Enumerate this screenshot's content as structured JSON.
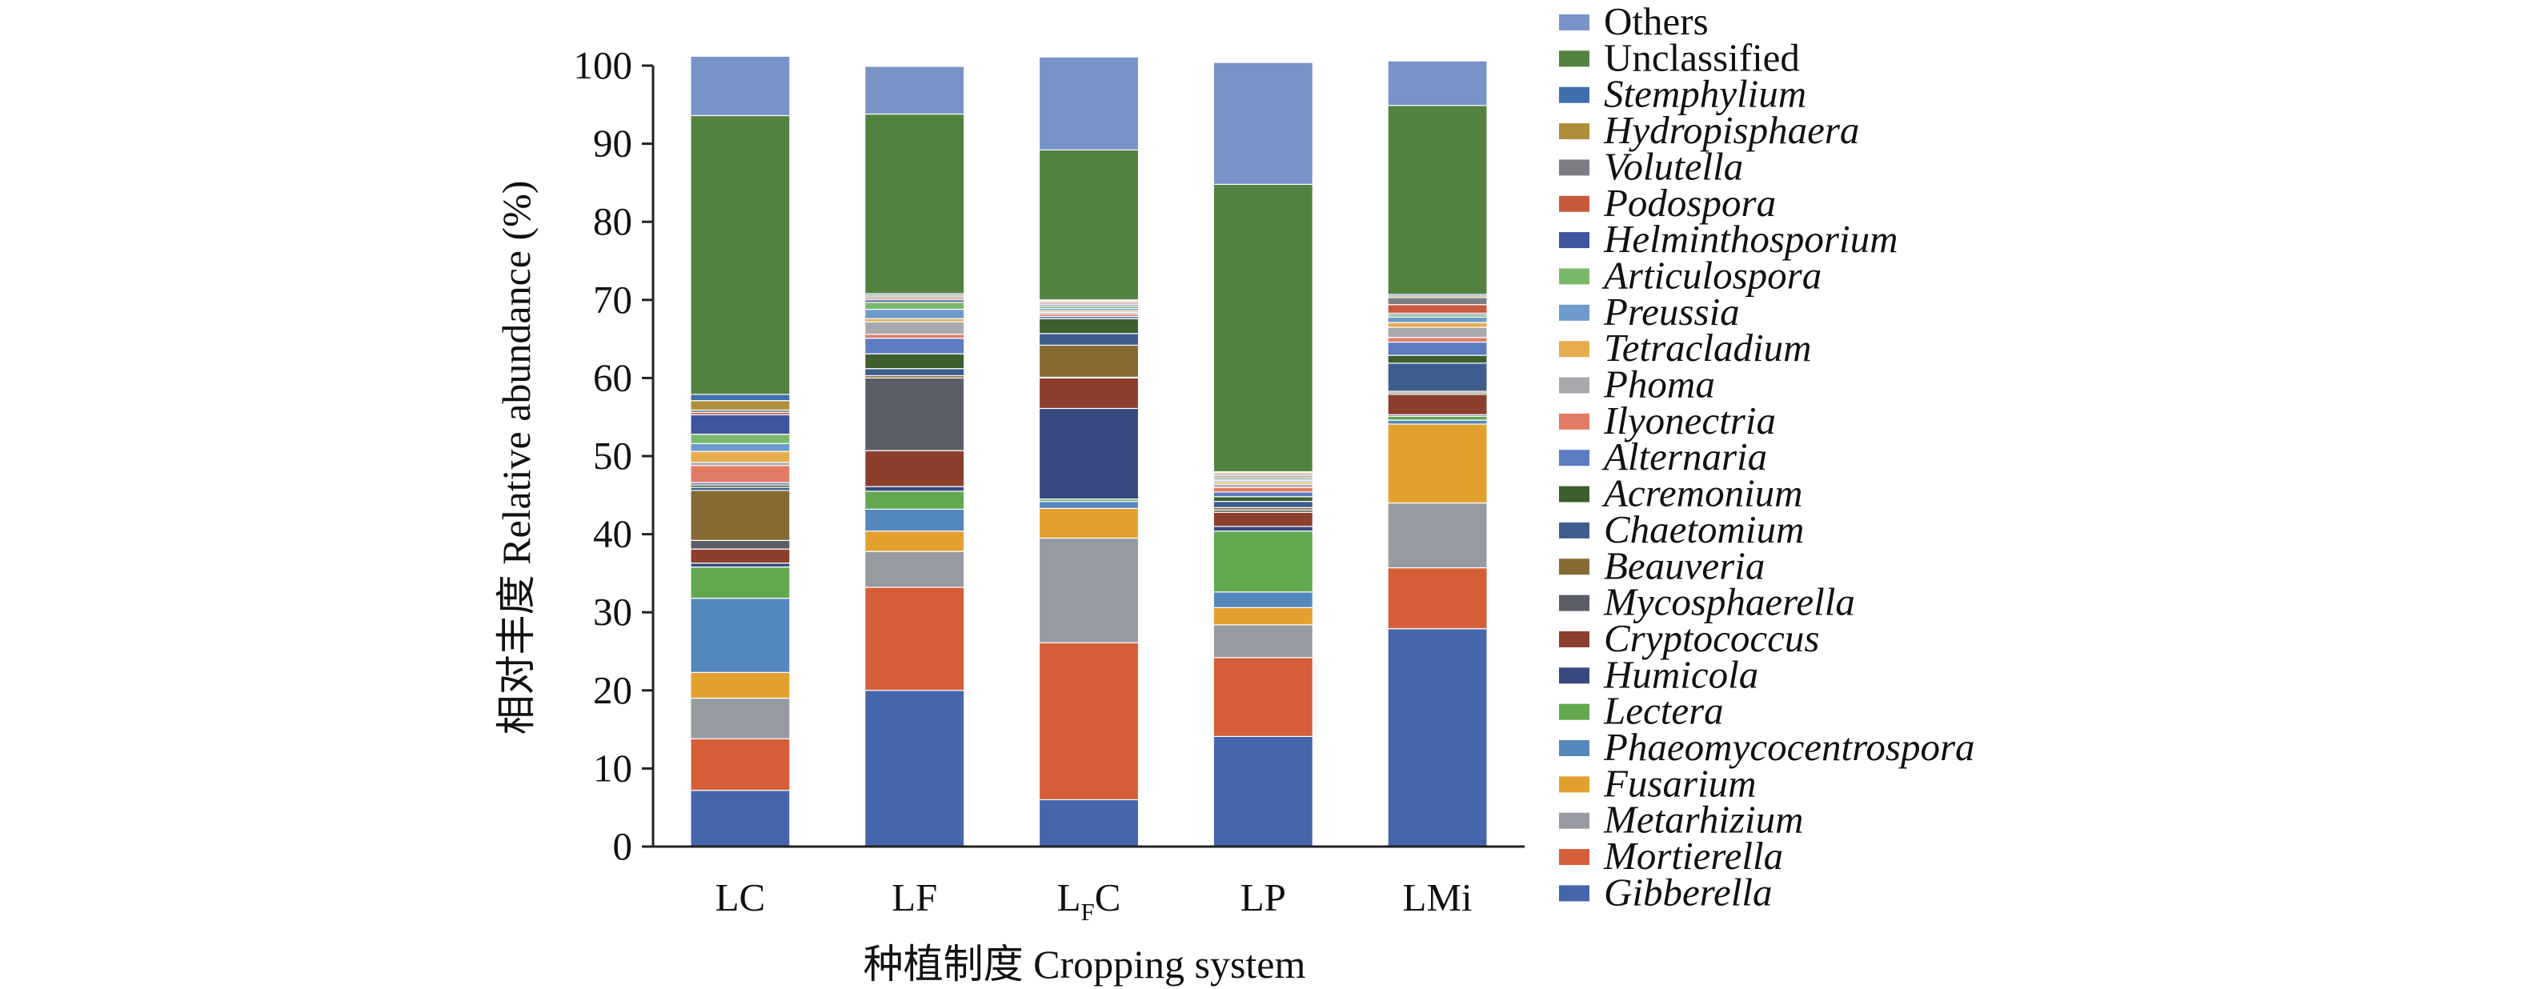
{
  "chart_data": {
    "type": "bar",
    "stacked": true,
    "xlabel": "种植制度 Cropping system",
    "ylabel": "相对丰度 Relative abundance (%)",
    "ylim": [
      0,
      100
    ],
    "yticks": [
      "0",
      "10",
      "20",
      "30",
      "40",
      "50",
      "60",
      "70",
      "80",
      "90",
      "100"
    ],
    "categories": [
      {
        "main": "LC",
        "sub": "",
        "tail": ""
      },
      {
        "main": "LF",
        "sub": "",
        "tail": ""
      },
      {
        "main": "L",
        "sub": "F",
        "tail": "C"
      },
      {
        "main": "LP",
        "sub": "",
        "tail": ""
      },
      {
        "main": "LMi",
        "sub": "",
        "tail": ""
      }
    ],
    "grid": false,
    "legend_position": "right",
    "series": [
      {
        "name": "Gibberella",
        "italic": true,
        "color": "#4565ac",
        "values": [
          7.2,
          20.0,
          6.0,
          14.1,
          27.9
        ]
      },
      {
        "name": "Mortierella",
        "italic": true,
        "color": "#d55e39",
        "values": [
          6.6,
          13.2,
          20.1,
          10.1,
          7.8
        ]
      },
      {
        "name": "Metarhizium",
        "italic": true,
        "color": "#979aa1",
        "values": [
          5.2,
          4.6,
          13.4,
          4.2,
          8.3
        ]
      },
      {
        "name": "Fusarium",
        "italic": true,
        "color": "#e2a12f",
        "values": [
          3.3,
          2.6,
          3.8,
          2.2,
          10.1
        ]
      },
      {
        "name": "Phaeomycocentrospora",
        "italic": true,
        "color": "#5488bd",
        "values": [
          9.5,
          2.8,
          0.9,
          2.0,
          0.5
        ]
      },
      {
        "name": "Lectera",
        "italic": true,
        "color": "#62a84f",
        "values": [
          4.0,
          2.3,
          0.3,
          7.8,
          0.5
        ]
      },
      {
        "name": "Humicola",
        "italic": true,
        "color": "#37497f",
        "values": [
          0.5,
          0.6,
          11.6,
          0.6,
          0.2
        ]
      },
      {
        "name": "Cryptococcus",
        "italic": true,
        "color": "#8c3f2d",
        "values": [
          1.8,
          4.6,
          3.9,
          1.8,
          2.6
        ]
      },
      {
        "name": "Mycosphaerella",
        "italic": true,
        "color": "#5b5e67",
        "values": [
          1.1,
          9.3,
          0.1,
          0.3,
          0.2
        ]
      },
      {
        "name": "Beauveria",
        "italic": true,
        "color": "#856a33",
        "values": [
          6.4,
          0.3,
          4.1,
          0.3,
          0.2
        ]
      },
      {
        "name": "Chaetomium",
        "italic": true,
        "color": "#3e5c8c",
        "values": [
          0.4,
          0.9,
          1.5,
          0.8,
          3.6
        ]
      },
      {
        "name": "Acremonium",
        "italic": true,
        "color": "#3e5e2d",
        "values": [
          0.3,
          1.9,
          1.9,
          0.6,
          1.0
        ]
      },
      {
        "name": "Alternaria",
        "italic": true,
        "color": "#5c7cc3",
        "values": [
          0.3,
          2.0,
          0.3,
          0.6,
          1.7
        ]
      },
      {
        "name": "Ilyonectria",
        "italic": true,
        "color": "#e27b64",
        "values": [
          2.2,
          0.5,
          0.3,
          0.6,
          0.6
        ]
      },
      {
        "name": "Phoma",
        "italic": true,
        "color": "#a8a9ac",
        "values": [
          0.4,
          1.6,
          0.2,
          0.4,
          1.3
        ]
      },
      {
        "name": "Tetracladium",
        "italic": true,
        "color": "#e6ac4f",
        "values": [
          1.4,
          0.4,
          0.2,
          0.3,
          0.6
        ]
      },
      {
        "name": "Preussia",
        "italic": true,
        "color": "#6d9bcc",
        "values": [
          1.0,
          1.2,
          0.3,
          0.2,
          0.7
        ]
      },
      {
        "name": "Articulospora",
        "italic": true,
        "color": "#79b86a",
        "values": [
          1.2,
          0.9,
          0.3,
          0.2,
          0.3
        ]
      },
      {
        "name": "Helminthosporium",
        "italic": true,
        "color": "#3f55a0",
        "values": [
          2.5,
          0.3,
          0.2,
          0.2,
          0.2
        ]
      },
      {
        "name": "Podospora",
        "italic": true,
        "color": "#c75a3c",
        "values": [
          0.3,
          0.2,
          0.2,
          0.2,
          1.1
        ]
      },
      {
        "name": "Volutella",
        "italic": true,
        "color": "#7c7e84",
        "values": [
          0.3,
          0.2,
          0.2,
          0.2,
          0.9
        ]
      },
      {
        "name": "Hydropisphaera",
        "italic": true,
        "color": "#b08d3b",
        "values": [
          1.2,
          0.2,
          0.1,
          0.2,
          0.2
        ]
      },
      {
        "name": "Stemphylium",
        "italic": true,
        "color": "#3f6fae",
        "values": [
          0.8,
          0.2,
          0.1,
          0.1,
          0.2
        ]
      },
      {
        "name": "Unclassified",
        "italic": false,
        "color": "#538240",
        "values": [
          35.7,
          23.0,
          19.2,
          36.8,
          24.2
        ]
      },
      {
        "name": "Others",
        "italic": false,
        "color": "#7993c9",
        "values": [
          7.6,
          6.1,
          11.9,
          15.6,
          5.7
        ]
      }
    ]
  }
}
